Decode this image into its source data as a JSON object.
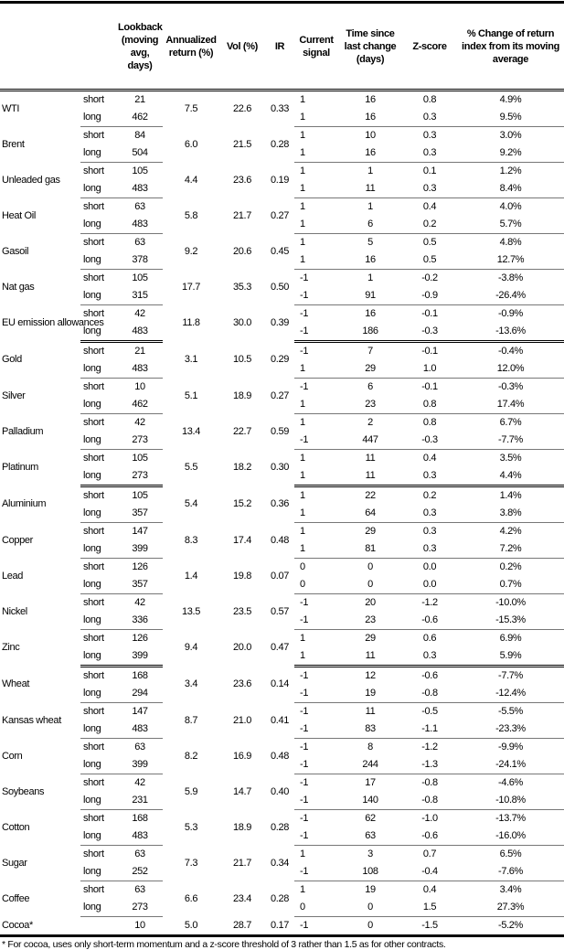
{
  "headers": [
    "",
    "",
    "Lookback (moving avg, days)",
    "Annualized return (%)",
    "Vol (%)",
    "IR",
    "Current signal",
    "Time since last change (days)",
    "Z-score",
    "% Change of return index from its moving average"
  ],
  "groups": [
    {
      "commodities": [
        {
          "name": "WTI",
          "annualized": "7.5",
          "vol": "22.6",
          "ir": "0.33",
          "rows": [
            {
              "term": "short",
              "lookback": "21",
              "signal": "1",
              "time": "16",
              "z": "0.8",
              "pct": "4.9%"
            },
            {
              "term": "long",
              "lookback": "462",
              "signal": "1",
              "time": "16",
              "z": "0.3",
              "pct": "9.5%"
            }
          ]
        },
        {
          "name": "Brent",
          "annualized": "6.0",
          "vol": "21.5",
          "ir": "0.28",
          "rows": [
            {
              "term": "short",
              "lookback": "84",
              "signal": "1",
              "time": "10",
              "z": "0.3",
              "pct": "3.0%"
            },
            {
              "term": "long",
              "lookback": "504",
              "signal": "1",
              "time": "16",
              "z": "0.3",
              "pct": "9.2%"
            }
          ]
        },
        {
          "name": "Unleaded gas",
          "annualized": "4.4",
          "vol": "23.6",
          "ir": "0.19",
          "rows": [
            {
              "term": "short",
              "lookback": "105",
              "signal": "1",
              "time": "1",
              "z": "0.1",
              "pct": "1.2%"
            },
            {
              "term": "long",
              "lookback": "483",
              "signal": "1",
              "time": "11",
              "z": "0.3",
              "pct": "8.4%"
            }
          ]
        },
        {
          "name": "Heat Oil",
          "annualized": "5.8",
          "vol": "21.7",
          "ir": "0.27",
          "rows": [
            {
              "term": "short",
              "lookback": "63",
              "signal": "1",
              "time": "1",
              "z": "0.4",
              "pct": "4.0%"
            },
            {
              "term": "long",
              "lookback": "483",
              "signal": "1",
              "time": "6",
              "z": "0.2",
              "pct": "5.7%"
            }
          ]
        },
        {
          "name": "Gasoil",
          "annualized": "9.2",
          "vol": "20.6",
          "ir": "0.45",
          "rows": [
            {
              "term": "short",
              "lookback": "63",
              "signal": "1",
              "time": "5",
              "z": "0.5",
              "pct": "4.8%"
            },
            {
              "term": "long",
              "lookback": "378",
              "signal": "1",
              "time": "16",
              "z": "0.5",
              "pct": "12.7%"
            }
          ]
        },
        {
          "name": "Nat gas",
          "annualized": "17.7",
          "vol": "35.3",
          "ir": "0.50",
          "rows": [
            {
              "term": "short",
              "lookback": "105",
              "signal": "-1",
              "time": "1",
              "z": "-0.2",
              "pct": "-3.8%"
            },
            {
              "term": "long",
              "lookback": "315",
              "signal": "-1",
              "time": "91",
              "z": "-0.9",
              "pct": "-26.4%"
            }
          ]
        },
        {
          "name": "EU emission allowances",
          "annualized": "11.8",
          "vol": "30.0",
          "ir": "0.39",
          "rows": [
            {
              "term": "short",
              "lookback": "42",
              "signal": "-1",
              "time": "16",
              "z": "-0.1",
              "pct": "-0.9%"
            },
            {
              "term": "long",
              "lookback": "483",
              "signal": "-1",
              "time": "186",
              "z": "-0.3",
              "pct": "-13.6%"
            }
          ]
        }
      ]
    },
    {
      "commodities": [
        {
          "name": "Gold",
          "annualized": "3.1",
          "vol": "10.5",
          "ir": "0.29",
          "rows": [
            {
              "term": "short",
              "lookback": "21",
              "signal": "-1",
              "time": "7",
              "z": "-0.1",
              "pct": "-0.4%"
            },
            {
              "term": "long",
              "lookback": "483",
              "signal": "1",
              "time": "29",
              "z": "1.0",
              "pct": "12.0%"
            }
          ]
        },
        {
          "name": "Silver",
          "annualized": "5.1",
          "vol": "18.9",
          "ir": "0.27",
          "rows": [
            {
              "term": "short",
              "lookback": "10",
              "signal": "-1",
              "time": "6",
              "z": "-0.1",
              "pct": "-0.3%"
            },
            {
              "term": "long",
              "lookback": "462",
              "signal": "1",
              "time": "23",
              "z": "0.8",
              "pct": "17.4%"
            }
          ]
        },
        {
          "name": "Palladium",
          "annualized": "13.4",
          "vol": "22.7",
          "ir": "0.59",
          "rows": [
            {
              "term": "short",
              "lookback": "42",
              "signal": "1",
              "time": "2",
              "z": "0.8",
              "pct": "6.7%"
            },
            {
              "term": "long",
              "lookback": "273",
              "signal": "-1",
              "time": "447",
              "z": "-0.3",
              "pct": "-7.7%"
            }
          ]
        },
        {
          "name": "Platinum",
          "annualized": "5.5",
          "vol": "18.2",
          "ir": "0.30",
          "rows": [
            {
              "term": "short",
              "lookback": "105",
              "signal": "1",
              "time": "11",
              "z": "0.4",
              "pct": "3.5%"
            },
            {
              "term": "long",
              "lookback": "273",
              "signal": "1",
              "time": "11",
              "z": "0.3",
              "pct": "4.4%"
            }
          ]
        }
      ]
    },
    {
      "commodities": [
        {
          "name": "Aluminium",
          "annualized": "5.4",
          "vol": "15.2",
          "ir": "0.36",
          "rows": [
            {
              "term": "short",
              "lookback": "105",
              "signal": "1",
              "time": "22",
              "z": "0.2",
              "pct": "1.4%"
            },
            {
              "term": "long",
              "lookback": "357",
              "signal": "1",
              "time": "64",
              "z": "0.3",
              "pct": "3.8%"
            }
          ]
        },
        {
          "name": "Copper",
          "annualized": "8.3",
          "vol": "17.4",
          "ir": "0.48",
          "rows": [
            {
              "term": "short",
              "lookback": "147",
              "signal": "1",
              "time": "29",
              "z": "0.3",
              "pct": "4.2%"
            },
            {
              "term": "long",
              "lookback": "399",
              "signal": "1",
              "time": "81",
              "z": "0.3",
              "pct": "7.2%"
            }
          ]
        },
        {
          "name": "Lead",
          "annualized": "1.4",
          "vol": "19.8",
          "ir": "0.07",
          "rows": [
            {
              "term": "short",
              "lookback": "126",
              "signal": "0",
              "time": "0",
              "z": "0.0",
              "pct": "0.2%"
            },
            {
              "term": "long",
              "lookback": "357",
              "signal": "0",
              "time": "0",
              "z": "0.0",
              "pct": "0.7%"
            }
          ]
        },
        {
          "name": "Nickel",
          "annualized": "13.5",
          "vol": "23.5",
          "ir": "0.57",
          "rows": [
            {
              "term": "short",
              "lookback": "42",
              "signal": "-1",
              "time": "20",
              "z": "-1.2",
              "pct": "-10.0%"
            },
            {
              "term": "long",
              "lookback": "336",
              "signal": "-1",
              "time": "23",
              "z": "-0.6",
              "pct": "-15.3%"
            }
          ]
        },
        {
          "name": "Zinc",
          "annualized": "9.4",
          "vol": "20.0",
          "ir": "0.47",
          "rows": [
            {
              "term": "short",
              "lookback": "126",
              "signal": "1",
              "time": "29",
              "z": "0.6",
              "pct": "6.9%"
            },
            {
              "term": "long",
              "lookback": "399",
              "signal": "1",
              "time": "11",
              "z": "0.3",
              "pct": "5.9%"
            }
          ]
        }
      ]
    },
    {
      "commodities": [
        {
          "name": "Wheat",
          "annualized": "3.4",
          "vol": "23.6",
          "ir": "0.14",
          "rows": [
            {
              "term": "short",
              "lookback": "168",
              "signal": "-1",
              "time": "12",
              "z": "-0.6",
              "pct": "-7.7%"
            },
            {
              "term": "long",
              "lookback": "294",
              "signal": "-1",
              "time": "19",
              "z": "-0.8",
              "pct": "-12.4%"
            }
          ]
        },
        {
          "name": "Kansas wheat",
          "annualized": "8.7",
          "vol": "21.0",
          "ir": "0.41",
          "rows": [
            {
              "term": "short",
              "lookback": "147",
              "signal": "-1",
              "time": "11",
              "z": "-0.5",
              "pct": "-5.5%"
            },
            {
              "term": "long",
              "lookback": "483",
              "signal": "-1",
              "time": "83",
              "z": "-1.1",
              "pct": "-23.3%"
            }
          ]
        },
        {
          "name": "Corn",
          "annualized": "8.2",
          "vol": "16.9",
          "ir": "0.48",
          "rows": [
            {
              "term": "short",
              "lookback": "63",
              "signal": "-1",
              "time": "8",
              "z": "-1.2",
              "pct": "-9.9%"
            },
            {
              "term": "long",
              "lookback": "399",
              "signal": "-1",
              "time": "244",
              "z": "-1.3",
              "pct": "-24.1%"
            }
          ]
        },
        {
          "name": "Soybeans",
          "annualized": "5.9",
          "vol": "14.7",
          "ir": "0.40",
          "rows": [
            {
              "term": "short",
              "lookback": "42",
              "signal": "-1",
              "time": "17",
              "z": "-0.8",
              "pct": "-4.6%"
            },
            {
              "term": "long",
              "lookback": "231",
              "signal": "-1",
              "time": "140",
              "z": "-0.8",
              "pct": "-10.8%"
            }
          ]
        },
        {
          "name": "Cotton",
          "annualized": "5.3",
          "vol": "18.9",
          "ir": "0.28",
          "rows": [
            {
              "term": "short",
              "lookback": "168",
              "signal": "-1",
              "time": "62",
              "z": "-1.0",
              "pct": "-13.7%"
            },
            {
              "term": "long",
              "lookback": "483",
              "signal": "-1",
              "time": "63",
              "z": "-0.6",
              "pct": "-16.0%"
            }
          ]
        },
        {
          "name": "Sugar",
          "annualized": "7.3",
          "vol": "21.7",
          "ir": "0.34",
          "rows": [
            {
              "term": "short",
              "lookback": "63",
              "signal": "1",
              "time": "3",
              "z": "0.7",
              "pct": "6.5%"
            },
            {
              "term": "long",
              "lookback": "252",
              "signal": "-1",
              "time": "108",
              "z": "-0.4",
              "pct": "-7.6%"
            }
          ]
        },
        {
          "name": "Coffee",
          "annualized": "6.6",
          "vol": "23.4",
          "ir": "0.28",
          "rows": [
            {
              "term": "short",
              "lookback": "63",
              "signal": "1",
              "time": "19",
              "z": "0.4",
              "pct": "3.4%"
            },
            {
              "term": "long",
              "lookback": "273",
              "signal": "0",
              "time": "0",
              "z": "1.5",
              "pct": "27.3%"
            }
          ]
        },
        {
          "name": "Cocoa*",
          "annualized": "5.0",
          "vol": "28.7",
          "ir": "0.17",
          "rows": [
            {
              "term": "",
              "lookback": "10",
              "signal": "-1",
              "time": "0",
              "z": "-1.5",
              "pct": "-5.2%"
            }
          ]
        }
      ]
    }
  ],
  "footnote": "* For cocoa, uses only short-term momentum and a z-score threshold of 3 rather than 1.5 as for other contracts."
}
